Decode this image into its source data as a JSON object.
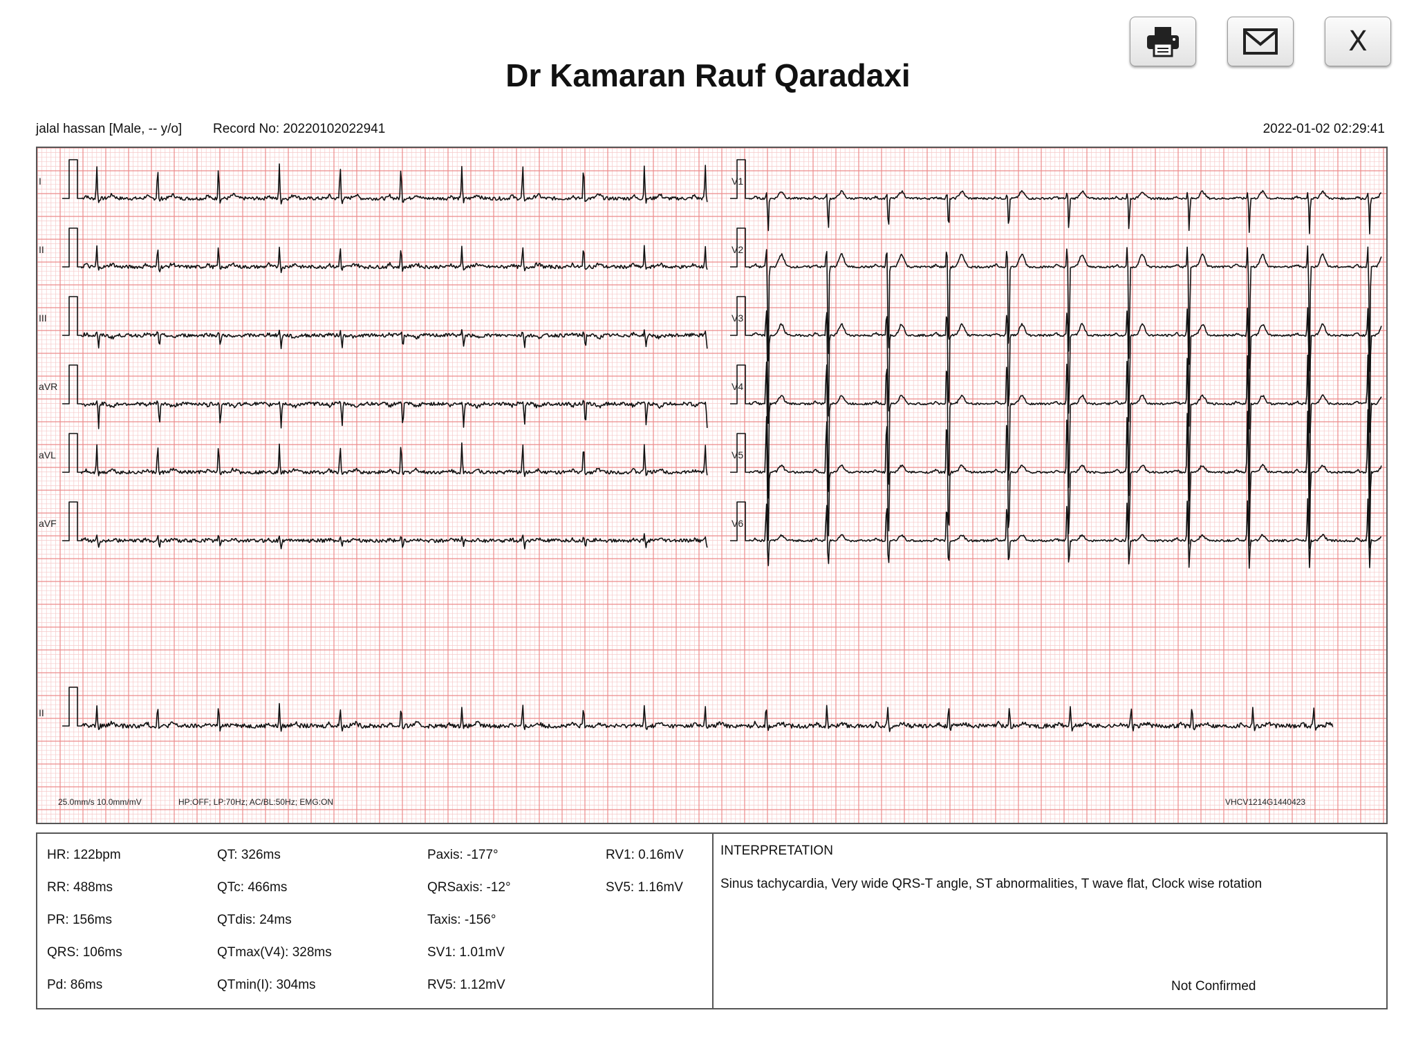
{
  "title": "Dr Kamaran Rauf Qaradaxi",
  "toolbar": {
    "print_icon": "printer-icon",
    "email_icon": "envelope-icon",
    "close_label": "X"
  },
  "patient": {
    "info": "jalal hassan [Male, -- y/o]",
    "record": "Record No: 20220102022941",
    "datetime": "2022-01-02 02:29:41"
  },
  "ecg": {
    "leads_left": [
      "I",
      "II",
      "III",
      "aVR",
      "aVL",
      "aVF"
    ],
    "leads_right": [
      "V1",
      "V2",
      "V3",
      "V4",
      "V5",
      "V6"
    ],
    "rhythm_lead": "II",
    "footer_left": "25.0mm/s  10.0mm/mV",
    "footer_filters": "HP:OFF; LP:70Hz; AC/BL:50Hz; EMG:ON",
    "device_id": "VHCV1214G1440423",
    "grid_colors": {
      "minor": "#f6c9c9",
      "major": "#ec8a8a",
      "trace": "#111111"
    }
  },
  "measurements": {
    "col1": [
      "HR: 122bpm",
      "RR: 488ms",
      "PR: 156ms",
      "QRS: 106ms",
      "Pd: 86ms"
    ],
    "col2": [
      "QT: 326ms",
      "QTc: 466ms",
      "QTdis: 24ms",
      "QTmax(V4): 328ms",
      "QTmin(I): 304ms"
    ],
    "col3": [
      "Paxis: -177°",
      "QRSaxis: -12°",
      "Taxis: -156°",
      "SV1: 1.01mV",
      "RV5: 1.12mV"
    ],
    "col4": [
      "RV1: 0.16mV",
      "SV5: 1.16mV"
    ]
  },
  "interpretation": {
    "heading": "INTERPRETATION",
    "text": "Sinus tachycardia, Very wide QRS-T angle, ST abnormalities, T wave flat, Clock wise rotation",
    "status": "Not Confirmed"
  }
}
